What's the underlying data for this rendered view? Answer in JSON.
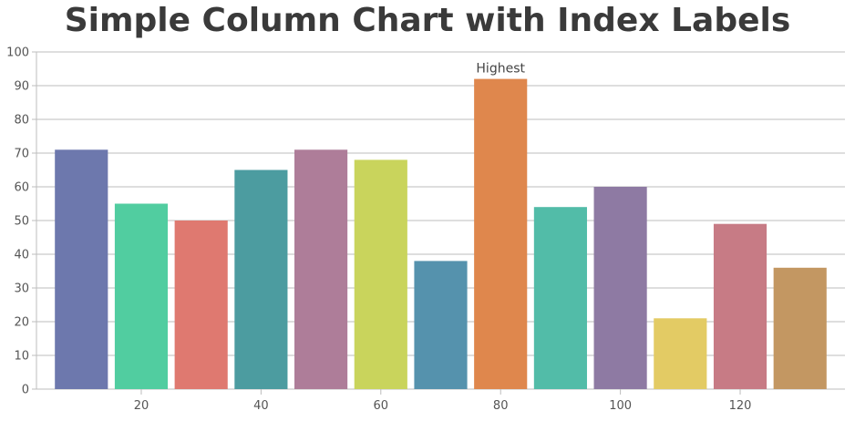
{
  "chart_data": {
    "type": "bar",
    "title": "Simple Column Chart with Index Labels",
    "x": [
      10,
      20,
      30,
      40,
      50,
      60,
      70,
      80,
      90,
      100,
      110,
      120,
      130
    ],
    "values": [
      71,
      55,
      50,
      65,
      71,
      68,
      38,
      92,
      54,
      60,
      21,
      49,
      36
    ],
    "index_labels": [
      "",
      "",
      "",
      "",
      "",
      "",
      "",
      "Highest",
      "",
      "",
      "",
      "",
      ""
    ],
    "colors": [
      "#6D78AD",
      "#51CDA0",
      "#DF7970",
      "#4C9CA0",
      "#AE7D99",
      "#C9D45C",
      "#5592AD",
      "#DF874D",
      "#52BCA8",
      "#8E7AA3",
      "#E3CB64",
      "#C77B85",
      "#C39762"
    ],
    "xlim": [
      2.5,
      137.5
    ],
    "ylim": [
      0,
      100
    ],
    "x_ticks": [
      20,
      40,
      60,
      80,
      100,
      120
    ],
    "y_ticks": [
      0,
      10,
      20,
      30,
      40,
      50,
      60,
      70,
      80,
      90,
      100
    ],
    "grid": "horizontal",
    "xlabel": "",
    "ylabel": ""
  }
}
